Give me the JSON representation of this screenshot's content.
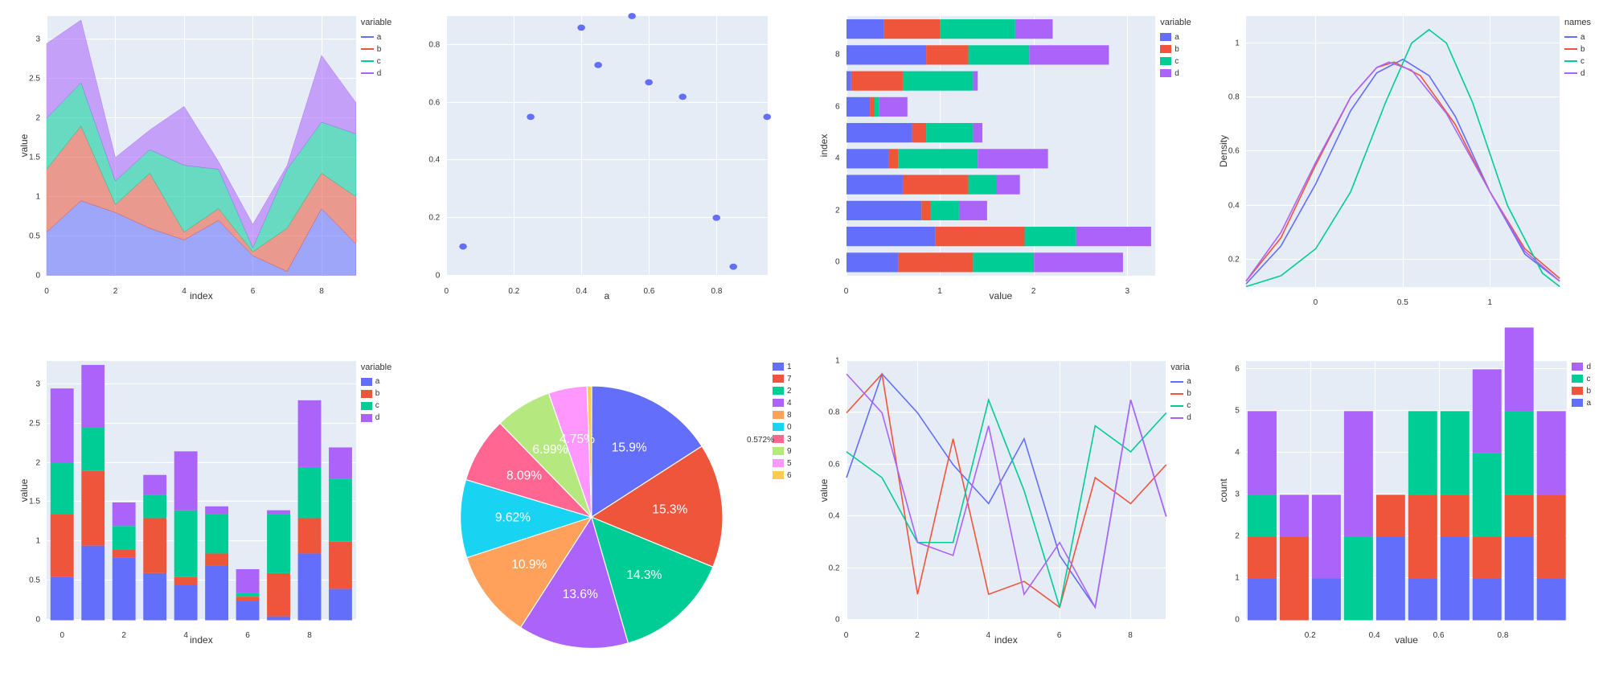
{
  "colors": {
    "blue": "#636efa",
    "red": "#ef553b",
    "green": "#00cc96",
    "purple": "#ab63fa",
    "orange": "#ffa15a",
    "cyan": "#19d3f3",
    "pink": "#ff6692",
    "lime": "#b6e880",
    "magenta": "#ff97ff",
    "gold": "#fecb52",
    "plot_bg": "#e5ecf6",
    "grid": "#ffffff",
    "text": "#333333"
  },
  "font": {
    "family": "Arial, sans-serif",
    "axis_label_size": 12,
    "tick_size": 10,
    "legend_size": 10
  },
  "area_chart": {
    "type": "area",
    "xlabel": "index",
    "ylabel": "value",
    "x": [
      0,
      1,
      2,
      3,
      4,
      5,
      6,
      7,
      8,
      9
    ],
    "xlim": [
      0,
      9
    ],
    "ylim": [
      0,
      3.3
    ],
    "yticks": [
      0,
      0.5,
      1,
      1.5,
      2,
      2.5,
      3
    ],
    "series": [
      {
        "name": "a",
        "color": "#636efa",
        "values": [
          0.55,
          0.95,
          0.8,
          0.6,
          0.45,
          0.7,
          0.25,
          0.05,
          0.85,
          0.4
        ]
      },
      {
        "name": "b",
        "color": "#ef553b",
        "values": [
          0.8,
          0.95,
          0.1,
          0.7,
          0.1,
          0.15,
          0.05,
          0.55,
          0.45,
          0.6
        ]
      },
      {
        "name": "c",
        "color": "#00cc96",
        "values": [
          0.65,
          0.55,
          0.3,
          0.3,
          0.85,
          0.5,
          0.05,
          0.75,
          0.65,
          0.8
        ]
      },
      {
        "name": "d",
        "color": "#ab63fa",
        "values": [
          0.95,
          0.8,
          0.3,
          0.25,
          0.75,
          0.1,
          0.3,
          0.05,
          0.85,
          0.4
        ]
      }
    ],
    "legend_title": "variable",
    "fill_opacity": 0.55
  },
  "scatter_chart": {
    "type": "scatter",
    "xlabel": "a",
    "xlim": [
      0,
      0.95
    ],
    "ylim": [
      0,
      0.9
    ],
    "xticks": [
      0,
      0.2,
      0.4,
      0.6,
      0.8
    ],
    "yticks": [
      0,
      0.2,
      0.4,
      0.6,
      0.8
    ],
    "points": [
      {
        "x": 0.55,
        "y": 0.9
      },
      {
        "x": 0.95,
        "y": 0.55
      },
      {
        "x": 0.8,
        "y": 0.2
      },
      {
        "x": 0.6,
        "y": 0.67
      },
      {
        "x": 0.45,
        "y": 0.73
      },
      {
        "x": 0.7,
        "y": 0.62
      },
      {
        "x": 0.25,
        "y": 0.55
      },
      {
        "x": 0.05,
        "y": 0.1
      },
      {
        "x": 0.85,
        "y": 0.03
      },
      {
        "x": 0.4,
        "y": 0.86
      }
    ],
    "marker_color": "#636efa",
    "marker_size": 6
  },
  "hbar_chart": {
    "type": "bar-horizontal-stacked",
    "xlabel": "value",
    "ylabel": "index",
    "xlim": [
      0,
      3.3
    ],
    "xticks": [
      0,
      1,
      2,
      3
    ],
    "yticks": [
      0,
      2,
      4,
      6,
      8
    ],
    "categories": [
      0,
      1,
      2,
      3,
      4,
      5,
      6,
      7,
      8,
      9
    ],
    "series": [
      {
        "name": "a",
        "color": "#636efa",
        "values": [
          0.55,
          0.95,
          0.8,
          0.6,
          0.45,
          0.7,
          0.25,
          0.05,
          0.85,
          0.4
        ]
      },
      {
        "name": "b",
        "color": "#ef553b",
        "values": [
          0.8,
          0.95,
          0.1,
          0.7,
          0.1,
          0.15,
          0.05,
          0.55,
          0.45,
          0.6
        ]
      },
      {
        "name": "c",
        "color": "#00cc96",
        "values": [
          0.65,
          0.55,
          0.3,
          0.3,
          0.85,
          0.5,
          0.05,
          0.75,
          0.65,
          0.8
        ]
      },
      {
        "name": "d",
        "color": "#ab63fa",
        "values": [
          0.95,
          0.8,
          0.3,
          0.25,
          0.75,
          0.1,
          0.3,
          0.05,
          0.85,
          0.4
        ]
      }
    ],
    "legend_title": "variable",
    "bar_height": 0.75
  },
  "density_chart": {
    "type": "density",
    "xlabel": "",
    "ylabel": "Density",
    "xlim": [
      -0.4,
      1.4
    ],
    "ylim": [
      0.1,
      1.1
    ],
    "xticks": [
      0,
      0.5,
      1
    ],
    "yticks": [
      0.2,
      0.4,
      0.6,
      0.8,
      1
    ],
    "legend_title": "names",
    "curves": [
      {
        "name": "a",
        "color": "#636efa",
        "pts": [
          [
            -0.4,
            0.11
          ],
          [
            -0.2,
            0.25
          ],
          [
            0,
            0.48
          ],
          [
            0.2,
            0.75
          ],
          [
            0.35,
            0.89
          ],
          [
            0.5,
            0.94
          ],
          [
            0.65,
            0.88
          ],
          [
            0.8,
            0.73
          ],
          [
            1.0,
            0.45
          ],
          [
            1.2,
            0.22
          ],
          [
            1.4,
            0.12
          ]
        ]
      },
      {
        "name": "b",
        "color": "#ef553b",
        "pts": [
          [
            -0.4,
            0.12
          ],
          [
            -0.2,
            0.28
          ],
          [
            0,
            0.55
          ],
          [
            0.2,
            0.8
          ],
          [
            0.35,
            0.91
          ],
          [
            0.45,
            0.93
          ],
          [
            0.6,
            0.88
          ],
          [
            0.8,
            0.7
          ],
          [
            1.0,
            0.45
          ],
          [
            1.2,
            0.24
          ],
          [
            1.4,
            0.13
          ]
        ]
      },
      {
        "name": "c",
        "color": "#00cc96",
        "pts": [
          [
            -0.4,
            0.1
          ],
          [
            -0.2,
            0.14
          ],
          [
            0,
            0.24
          ],
          [
            0.2,
            0.45
          ],
          [
            0.4,
            0.78
          ],
          [
            0.55,
            1.0
          ],
          [
            0.65,
            1.05
          ],
          [
            0.75,
            1.0
          ],
          [
            0.9,
            0.78
          ],
          [
            1.1,
            0.4
          ],
          [
            1.3,
            0.15
          ],
          [
            1.4,
            0.1
          ]
        ]
      },
      {
        "name": "d",
        "color": "#ab63fa",
        "pts": [
          [
            -0.4,
            0.12
          ],
          [
            -0.2,
            0.3
          ],
          [
            0,
            0.56
          ],
          [
            0.2,
            0.8
          ],
          [
            0.35,
            0.91
          ],
          [
            0.42,
            0.93
          ],
          [
            0.55,
            0.9
          ],
          [
            0.75,
            0.74
          ],
          [
            1.0,
            0.45
          ],
          [
            1.2,
            0.23
          ],
          [
            1.4,
            0.12
          ]
        ]
      }
    ]
  },
  "vbar_chart": {
    "type": "bar-stacked",
    "xlabel": "index",
    "ylabel": "value",
    "xlim": [
      -0.5,
      9.5
    ],
    "ylim": [
      0,
      3.3
    ],
    "yticks": [
      0,
      0.5,
      1,
      1.5,
      2,
      2.5,
      3
    ],
    "xticks": [
      0,
      2,
      4,
      6,
      8
    ],
    "categories": [
      0,
      1,
      2,
      3,
      4,
      5,
      6,
      7,
      8,
      9
    ],
    "series": [
      {
        "name": "a",
        "color": "#636efa",
        "values": [
          0.55,
          0.95,
          0.8,
          0.6,
          0.45,
          0.7,
          0.25,
          0.05,
          0.85,
          0.4
        ]
      },
      {
        "name": "b",
        "color": "#ef553b",
        "values": [
          0.8,
          0.95,
          0.1,
          0.7,
          0.1,
          0.15,
          0.05,
          0.55,
          0.45,
          0.6
        ]
      },
      {
        "name": "c",
        "color": "#00cc96",
        "values": [
          0.65,
          0.55,
          0.3,
          0.3,
          0.85,
          0.5,
          0.05,
          0.75,
          0.65,
          0.8
        ]
      },
      {
        "name": "d",
        "color": "#ab63fa",
        "values": [
          0.95,
          0.8,
          0.3,
          0.25,
          0.75,
          0.1,
          0.3,
          0.05,
          0.85,
          0.4
        ]
      }
    ],
    "legend_title": "variable",
    "bar_width": 0.75
  },
  "pie_chart": {
    "type": "pie",
    "slices": [
      {
        "label": "1",
        "color": "#636efa",
        "pct": 15.9
      },
      {
        "label": "7",
        "color": "#ef553b",
        "pct": 15.3
      },
      {
        "label": "2",
        "color": "#00cc96",
        "pct": 14.3
      },
      {
        "label": "4",
        "color": "#ab63fa",
        "pct": 13.6
      },
      {
        "label": "8",
        "color": "#ffa15a",
        "pct": 10.9
      },
      {
        "label": "0",
        "color": "#19d3f3",
        "pct": 9.62
      },
      {
        "label": "3",
        "color": "#ff6692",
        "pct": 8.09
      },
      {
        "label": "9",
        "color": "#b6e880",
        "pct": 6.99
      },
      {
        "label": "5",
        "color": "#ff97ff",
        "pct": 4.75
      },
      {
        "label": "6",
        "color": "#fecb52",
        "pct": 0.572
      }
    ],
    "legend_items": [
      "1",
      "7",
      "2",
      "4",
      "8",
      "0",
      "3",
      "9",
      "5",
      "6"
    ],
    "callouts": [
      {
        "label": "0.572%",
        "slice": 9
      }
    ]
  },
  "line_chart": {
    "type": "line",
    "xlabel": "index",
    "ylabel": "value",
    "xlim": [
      0,
      9
    ],
    "ylim": [
      0,
      1
    ],
    "xticks": [
      0,
      2,
      4,
      6,
      8
    ],
    "yticks": [
      0,
      0.2,
      0.4,
      0.6,
      0.8,
      1
    ],
    "legend_title": "varia",
    "series": [
      {
        "name": "a",
        "color": "#636efa",
        "values": [
          0.55,
          0.95,
          0.8,
          0.6,
          0.45,
          0.7,
          0.25,
          0.05,
          0.85,
          0.4
        ]
      },
      {
        "name": "b",
        "color": "#ef553b",
        "values": [
          0.8,
          0.95,
          0.1,
          0.7,
          0.1,
          0.15,
          0.05,
          0.55,
          0.45,
          0.6
        ]
      },
      {
        "name": "c",
        "color": "#00cc96",
        "values": [
          0.65,
          0.55,
          0.3,
          0.3,
          0.85,
          0.5,
          0.05,
          0.75,
          0.65,
          0.8
        ]
      },
      {
        "name": "d",
        "color": "#ab63fa",
        "values": [
          0.95,
          0.8,
          0.3,
          0.25,
          0.75,
          0.1,
          0.3,
          0.05,
          0.85,
          0.4
        ]
      }
    ]
  },
  "hist_chart": {
    "type": "histogram-stacked",
    "xlabel": "value",
    "ylabel": "count",
    "xlim": [
      0,
      1
    ],
    "ylim": [
      0,
      6.2
    ],
    "xticks": [
      0.2,
      0.4,
      0.6,
      0.8
    ],
    "yticks": [
      0,
      1,
      2,
      3,
      4,
      5,
      6
    ],
    "bin_edges": [
      0.0,
      0.1,
      0.2,
      0.3,
      0.4,
      0.5,
      0.6,
      0.7,
      0.8,
      0.9,
      1.0
    ],
    "series": [
      {
        "name": "a",
        "color": "#636efa",
        "counts": [
          1,
          0,
          1,
          0,
          2,
          1,
          2,
          1,
          2,
          1
        ]
      },
      {
        "name": "b",
        "color": "#ef553b",
        "counts": [
          1,
          2,
          0,
          0,
          1,
          2,
          1,
          1,
          1,
          2
        ]
      },
      {
        "name": "c",
        "color": "#00cc96",
        "counts": [
          1,
          0,
          0,
          2,
          0,
          2,
          2,
          2,
          2,
          0
        ]
      },
      {
        "name": "d",
        "color": "#ab63fa",
        "counts": [
          2,
          1,
          2,
          3,
          0,
          0,
          0,
          2,
          2,
          2
        ]
      }
    ],
    "legend_names": [
      "d",
      "c",
      "b",
      "a"
    ]
  }
}
